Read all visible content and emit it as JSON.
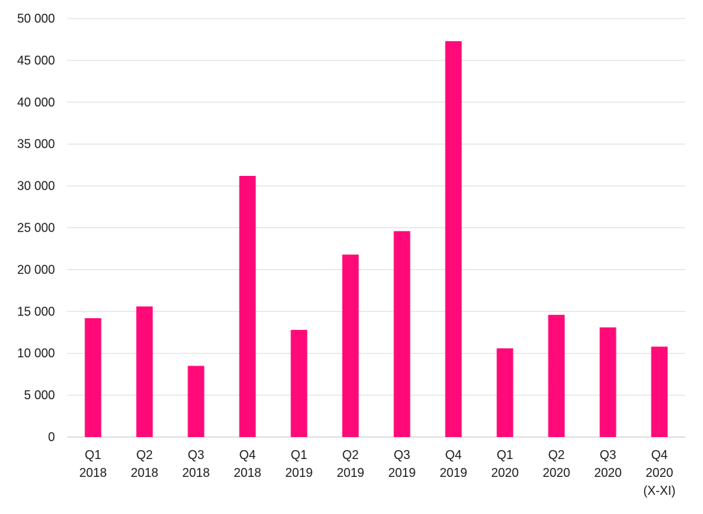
{
  "chart_data": {
    "type": "bar",
    "title": "",
    "xlabel": "",
    "ylabel": "",
    "categories": [
      [
        "Q1",
        "2018"
      ],
      [
        "Q2",
        "2018"
      ],
      [
        "Q3",
        "2018"
      ],
      [
        "Q4",
        "2018"
      ],
      [
        "Q1",
        "2019"
      ],
      [
        "Q2",
        "2019"
      ],
      [
        "Q3",
        "2019"
      ],
      [
        "Q4",
        "2019"
      ],
      [
        "Q1",
        "2020"
      ],
      [
        "Q2",
        "2020"
      ],
      [
        "Q3",
        "2020"
      ],
      [
        "Q4",
        "2020",
        "(X-XI)"
      ]
    ],
    "values": [
      14200,
      15600,
      8500,
      31200,
      12800,
      21800,
      24600,
      47300,
      10600,
      14600,
      13100,
      10800
    ],
    "ylim": [
      0,
      50000
    ],
    "y_ticks": [
      0,
      5000,
      10000,
      15000,
      20000,
      25000,
      30000,
      35000,
      40000,
      45000,
      50000
    ],
    "y_tick_labels": [
      "0",
      "5 000",
      "10 000",
      "15 000",
      "20 000",
      "25 000",
      "30 000",
      "35 000",
      "40 000",
      "45 000",
      "50 000"
    ],
    "grid": true,
    "legend": "none",
    "bar_color": "#ff0a78"
  }
}
